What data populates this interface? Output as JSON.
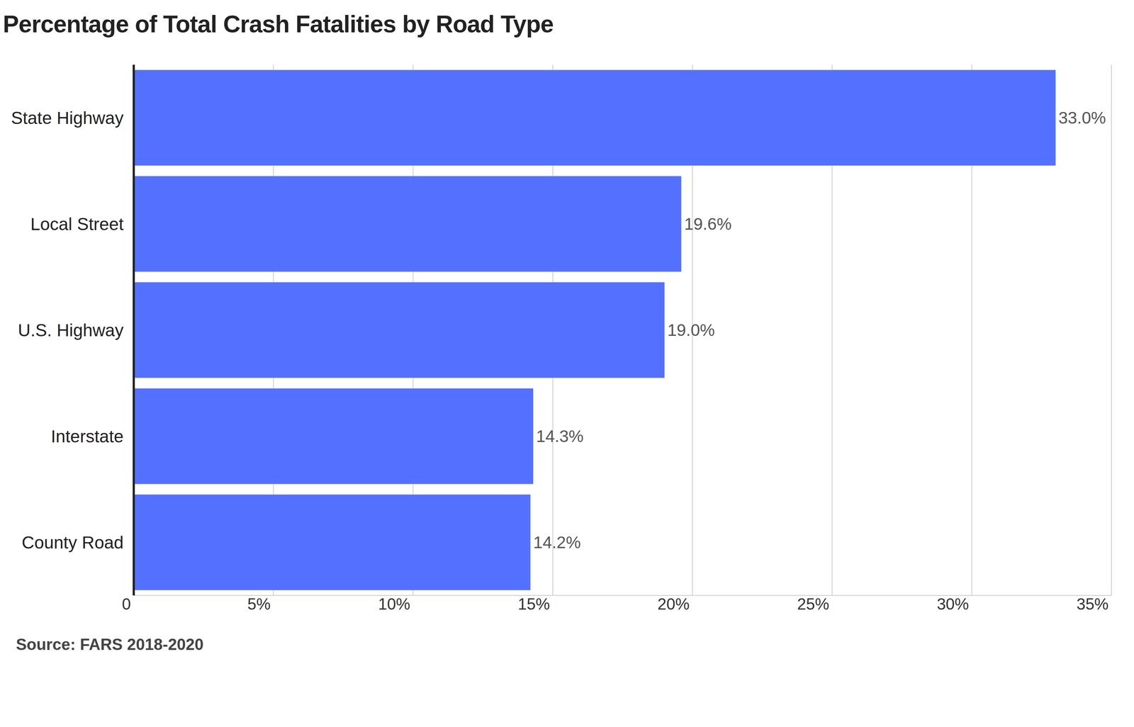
{
  "chart_data": {
    "type": "bar",
    "title": "Percentage of Total Crash Fatalities by Road Type",
    "categories": [
      "State Highway",
      "Local Street",
      "U.S. Highway",
      "Interstate",
      "County Road"
    ],
    "values": [
      33.0,
      19.6,
      19.0,
      14.3,
      14.2
    ],
    "value_labels": [
      "33.0%",
      "19.6%",
      "19.0%",
      "14.3%",
      "14.2%"
    ],
    "color": "#5470ff",
    "orientation": "horizontal",
    "data_labels": true,
    "grid": true,
    "xlim": [
      0,
      35
    ],
    "xticks": [
      0,
      {
        "value": 5,
        "label": "5%"
      },
      {
        "value": 10,
        "label": "10%"
      },
      {
        "value": 15,
        "label": "15%"
      },
      {
        "value": 20,
        "label": "20%"
      },
      {
        "value": 25,
        "label": "25%"
      },
      {
        "value": 30,
        "label": "30%"
      },
      {
        "value": 35,
        "label": "35%"
      }
    ],
    "annotations": [
      "Source: FARS 2018-2020"
    ]
  }
}
